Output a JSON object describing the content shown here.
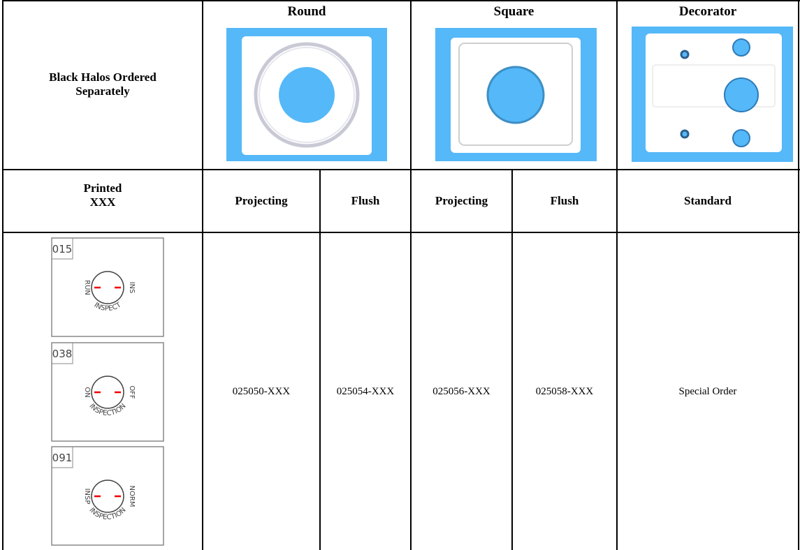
{
  "header": {
    "corner": "Black Halos Ordered Separately",
    "groups": [
      "Round",
      "Square",
      "Decorator"
    ]
  },
  "subheader": {
    "printed": [
      "Printed",
      "XXX"
    ],
    "columns": [
      "Projecting",
      "Flush",
      "Projecting",
      "Flush",
      "Standard"
    ]
  },
  "labels": [
    {
      "code": "015",
      "left": "RUN",
      "right": "INS",
      "bottom": "INSPECT"
    },
    {
      "code": "038",
      "left": "ON",
      "right": "OFF",
      "bottom": "INSPECTION"
    },
    {
      "code": "091",
      "left": "INSP",
      "right": "NORM",
      "bottom": "INSPECTION"
    }
  ],
  "parts": [
    "025050-XXX",
    "025054-XXX",
    "025056-XXX",
    "025058-XXX",
    "Special Order"
  ]
}
